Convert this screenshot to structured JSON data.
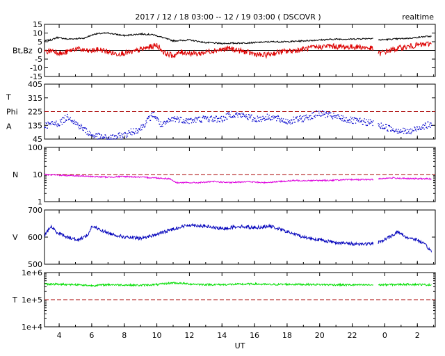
{
  "header": {
    "title": "2017 / 12 / 18   03:00 -- 12 / 19   03:00 ( DSCOVR )",
    "mode": "realtime"
  },
  "chart_data": {
    "type": "line",
    "time_axis": {
      "label": "UT",
      "range_hours": [
        3.1,
        27.1
      ],
      "tick_hours": [
        4,
        6,
        8,
        10,
        12,
        14,
        16,
        18,
        20,
        22,
        24,
        26
      ],
      "tick_labels": [
        "4",
        "6",
        "8",
        "10",
        "12",
        "14",
        "16",
        "18",
        "20",
        "22",
        "0",
        "2"
      ]
    },
    "panels": [
      {
        "id": "mag",
        "ylabels": [
          "Bt,Bz"
        ],
        "scale": "linear",
        "ylim": [
          -15,
          15
        ],
        "ticks": [
          15,
          10,
          5,
          0,
          -5,
          -10,
          -15
        ],
        "tick_labels": [
          "15",
          "10",
          "5",
          "0",
          "-5",
          "-10",
          "-15"
        ],
        "reference_lines": [
          {
            "value": 0,
            "color": "#000000",
            "dashed": false
          }
        ],
        "series": [
          {
            "name": "Bt",
            "color": "#000000",
            "style": "line",
            "noise": 0.4,
            "points": [
              [
                3.1,
                5.5
              ],
              [
                3.5,
                6
              ],
              [
                3.9,
                7.5
              ],
              [
                4.5,
                6.5
              ],
              [
                5.5,
                7
              ],
              [
                6.2,
                9.5
              ],
              [
                7,
                10
              ],
              [
                8,
                8.5
              ],
              [
                9,
                9.5
              ],
              [
                9.8,
                9
              ],
              [
                10.5,
                7
              ],
              [
                11,
                5.5
              ],
              [
                12,
                6
              ],
              [
                13,
                4.5
              ],
              [
                14,
                4
              ],
              [
                15,
                4.2
              ],
              [
                16,
                4.5
              ],
              [
                17,
                5
              ],
              [
                18,
                5
              ],
              [
                19,
                5.5
              ],
              [
                20,
                6
              ],
              [
                21,
                6.5
              ],
              [
                22,
                6.5
              ],
              [
                23.3,
                7
              ]
            ]
          },
          {
            "name": "Bt",
            "color": "#000000",
            "style": "line",
            "noise": 0.4,
            "points": [
              [
                23.6,
                6
              ],
              [
                24.5,
                6.5
              ],
              [
                25.5,
                7
              ],
              [
                26.5,
                8
              ],
              [
                26.9,
                8
              ]
            ]
          },
          {
            "name": "Bz",
            "color": "#dd0000",
            "style": "line",
            "noise": 1.6,
            "points": [
              [
                3.1,
                -1
              ],
              [
                3.6,
                0
              ],
              [
                4.2,
                -2
              ],
              [
                5,
                1
              ],
              [
                5.8,
                -0.5
              ],
              [
                6.5,
                0.5
              ],
              [
                7.5,
                -2
              ],
              [
                8.5,
                -1
              ],
              [
                9.2,
                1
              ],
              [
                10,
                3
              ],
              [
                10.5,
                -1.5
              ],
              [
                11,
                -3
              ],
              [
                11.5,
                -1
              ],
              [
                12.5,
                -2
              ],
              [
                13.5,
                0
              ],
              [
                14.5,
                1
              ],
              [
                15.5,
                -1
              ],
              [
                16.5,
                -3
              ],
              [
                17.5,
                -1
              ],
              [
                18.5,
                0
              ],
              [
                19.5,
                1.5
              ],
              [
                20.5,
                2.5
              ],
              [
                21.5,
                2
              ],
              [
                22.5,
                2
              ],
              [
                23.3,
                1
              ]
            ]
          },
          {
            "name": "Bz",
            "color": "#dd0000",
            "style": "line",
            "noise": 1.6,
            "points": [
              [
                23.6,
                -2
              ],
              [
                24.3,
                0
              ],
              [
                25,
                1.5
              ],
              [
                26,
                3
              ],
              [
                26.9,
                4
              ]
            ]
          }
        ]
      },
      {
        "id": "phi",
        "ylabels": [
          "T",
          "Phi",
          "A"
        ],
        "scale": "linear",
        "ylim": [
          45,
          405
        ],
        "ticks": [
          405,
          315,
          225,
          135,
          45
        ],
        "tick_labels": [
          "405",
          "315",
          "225",
          "135",
          "45"
        ],
        "reference_lines": [
          {
            "value": 225,
            "color": "#aa0000",
            "dashed": true
          }
        ],
        "series": [
          {
            "name": "Phi",
            "color": "#0000cc",
            "style": "dots",
            "noise": 22,
            "points": [
              [
                3.1,
                135
              ],
              [
                4,
                150
              ],
              [
                4.6,
                195
              ],
              [
                5,
                150
              ],
              [
                5.4,
                120
              ],
              [
                6,
                70
              ],
              [
                7,
                50
              ],
              [
                8,
                70
              ],
              [
                8.5,
                95
              ],
              [
                9,
                115
              ],
              [
                9.8,
                210
              ],
              [
                10.3,
                130
              ],
              [
                11,
                180
              ],
              [
                12,
                165
              ],
              [
                13,
                180
              ],
              [
                14,
                175
              ],
              [
                14.6,
                210
              ],
              [
                15.5,
                195
              ],
              [
                16,
                175
              ],
              [
                17,
                190
              ],
              [
                18,
                160
              ],
              [
                19,
                180
              ],
              [
                20,
                215
              ],
              [
                21,
                190
              ],
              [
                22,
                165
              ],
              [
                23.3,
                150
              ]
            ]
          },
          {
            "name": "Phi",
            "color": "#0000cc",
            "style": "dots",
            "noise": 22,
            "points": [
              [
                23.6,
                135
              ],
              [
                24.5,
                110
              ],
              [
                25.5,
                90
              ],
              [
                26.3,
                130
              ],
              [
                26.9,
                140
              ]
            ]
          }
        ]
      },
      {
        "id": "density",
        "ylabels": [
          "N"
        ],
        "scale": "log",
        "ylim": [
          1,
          100
        ],
        "ticks": [
          100,
          10,
          1
        ],
        "tick_labels": [
          "100",
          "10",
          "1"
        ],
        "reference_lines": [
          {
            "value": 10,
            "color": "#aa0000",
            "dashed": true
          }
        ],
        "series": [
          {
            "name": "N",
            "color": "#dd00dd",
            "style": "line",
            "noise": 0.025,
            "points": [
              [
                3.1,
                10
              ],
              [
                5,
                9
              ],
              [
                7,
                8
              ],
              [
                8,
                8.5
              ],
              [
                10,
                7.5
              ],
              [
                10.8,
                7
              ],
              [
                11.2,
                5
              ],
              [
                12.5,
                5
              ],
              [
                13.5,
                5.5
              ],
              [
                14.5,
                5
              ],
              [
                15.5,
                5.5
              ],
              [
                16.5,
                5
              ],
              [
                17.5,
                5.5
              ],
              [
                18.5,
                6
              ],
              [
                20,
                6
              ],
              [
                21,
                6.2
              ],
              [
                22,
                6.5
              ],
              [
                23.3,
                6.5
              ]
            ]
          },
          {
            "name": "N",
            "color": "#dd00dd",
            "style": "line",
            "noise": 0.025,
            "points": [
              [
                23.6,
                7
              ],
              [
                24.5,
                7.5
              ],
              [
                25.5,
                7
              ],
              [
                26.5,
                7
              ],
              [
                26.9,
                6.8
              ]
            ]
          }
        ]
      },
      {
        "id": "speed",
        "ylabels": [
          "V"
        ],
        "scale": "linear",
        "ylim": [
          500,
          700
        ],
        "ticks": [
          700,
          600,
          500
        ],
        "tick_labels": [
          "700",
          "600",
          "500"
        ],
        "reference_lines": [],
        "series": [
          {
            "name": "V",
            "color": "#0000bb",
            "style": "line",
            "noise": 6,
            "points": [
              [
                3.1,
                605
              ],
              [
                3.5,
                640
              ],
              [
                3.8,
                620
              ],
              [
                4.5,
                600
              ],
              [
                5.2,
                590
              ],
              [
                5.8,
                610
              ],
              [
                6,
                640
              ],
              [
                7,
                615
              ],
              [
                8,
                600
              ],
              [
                9,
                595
              ],
              [
                10,
                610
              ],
              [
                11,
                630
              ],
              [
                12,
                645
              ],
              [
                13,
                640
              ],
              [
                14,
                630
              ],
              [
                15,
                640
              ],
              [
                16,
                635
              ],
              [
                17,
                640
              ],
              [
                18,
                620
              ],
              [
                19,
                600
              ],
              [
                20,
                590
              ],
              [
                21,
                580
              ],
              [
                22,
                575
              ],
              [
                23.3,
                575
              ]
            ]
          },
          {
            "name": "V",
            "color": "#0000bb",
            "style": "line",
            "noise": 6,
            "points": [
              [
                23.6,
                580
              ],
              [
                24.3,
                600
              ],
              [
                24.8,
                620
              ],
              [
                25.3,
                600
              ],
              [
                26,
                590
              ],
              [
                26.5,
                570
              ],
              [
                26.9,
                545
              ]
            ]
          }
        ]
      },
      {
        "id": "temperature",
        "ylabels": [
          "T"
        ],
        "scale": "log",
        "ylim": [
          10000,
          1000000
        ],
        "ticks": [
          1000000,
          100000,
          10000
        ],
        "tick_labels": [
          "1e+6",
          "1e+5",
          "1e+4"
        ],
        "reference_lines": [
          {
            "value": 100000,
            "color": "#aa0000",
            "dashed": true
          }
        ],
        "series": [
          {
            "name": "T",
            "color": "#00dd00",
            "style": "line",
            "noise": 0.035,
            "points": [
              [
                3.1,
                380000
              ],
              [
                5,
                360000
              ],
              [
                6,
                330000
              ],
              [
                7,
                360000
              ],
              [
                9,
                340000
              ],
              [
                10,
                360000
              ],
              [
                11,
                420000
              ],
              [
                12,
                380000
              ],
              [
                13,
                360000
              ],
              [
                14,
                360000
              ],
              [
                16,
                380000
              ],
              [
                17,
                360000
              ],
              [
                18,
                370000
              ],
              [
                20,
                360000
              ],
              [
                22,
                350000
              ],
              [
                23.3,
                350000
              ]
            ]
          },
          {
            "name": "T",
            "color": "#00dd00",
            "style": "line",
            "noise": 0.035,
            "points": [
              [
                23.6,
                350000
              ],
              [
                24.5,
                360000
              ],
              [
                25.5,
                370000
              ],
              [
                26.9,
                350000
              ]
            ]
          }
        ]
      }
    ]
  }
}
